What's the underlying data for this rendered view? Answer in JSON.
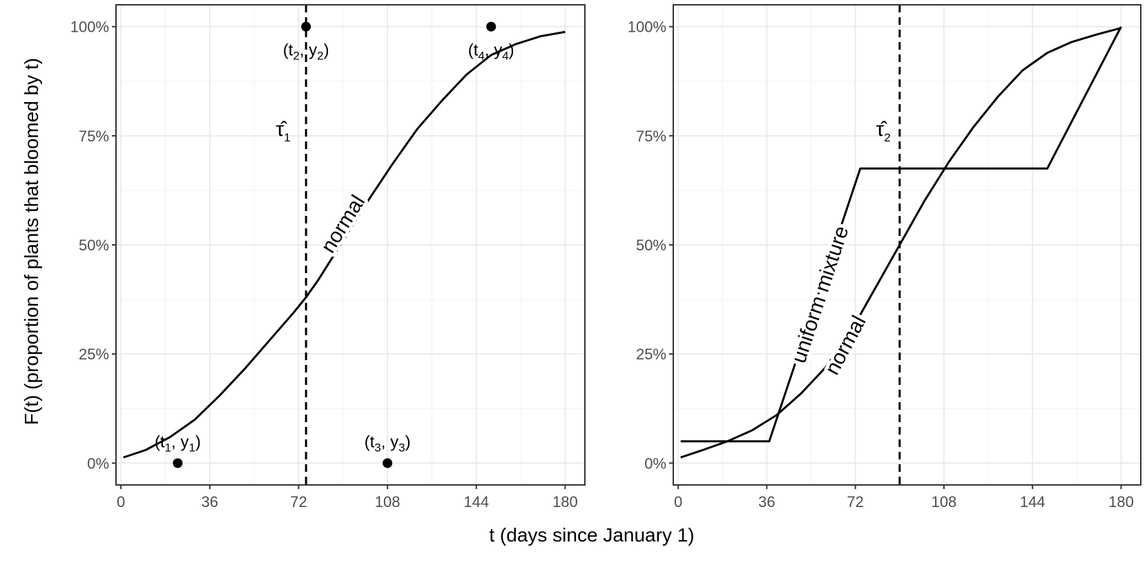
{
  "figure": {
    "y_title": "F(t) (proportion of plants that bloomed by t)",
    "x_title": "t (days since January 1)"
  },
  "colors": {
    "panel_border": "#333333",
    "grid_major": "#ebebeb",
    "grid_minor": "#f2f2f2",
    "ink": "#000000",
    "tick_text": "#4d4d4d"
  },
  "chart_data": [
    {
      "type": "line",
      "xlim": [
        -2,
        188
      ],
      "ylim": [
        -0.05,
        1.05
      ],
      "x_ticks": [
        0,
        36,
        72,
        108,
        144,
        180
      ],
      "x_tick_labels": [
        "0",
        "36",
        "72",
        "108",
        "144",
        "180"
      ],
      "y_ticks": [
        0,
        0.25,
        0.5,
        0.75,
        1
      ],
      "y_tick_labels": [
        "0%",
        "25%",
        "50%",
        "75%",
        "100%"
      ],
      "grid": true,
      "series": [
        {
          "name": "normal",
          "style": "solid",
          "x": [
            1,
            10,
            20,
            30,
            40,
            50,
            60,
            70,
            75,
            80,
            90,
            100,
            110,
            120,
            130,
            140,
            150,
            160,
            170,
            180
          ],
          "y": [
            0.013,
            0.03,
            0.06,
            0.1,
            0.155,
            0.215,
            0.28,
            0.345,
            0.38,
            0.42,
            0.51,
            0.6,
            0.685,
            0.765,
            0.83,
            0.89,
            0.935,
            0.96,
            0.978,
            0.988
          ]
        }
      ],
      "points": [
        {
          "x": 23,
          "y": 0,
          "label": "(t",
          "sub1": "1",
          "mid": ", y",
          "sub2": "1",
          "end": ")"
        },
        {
          "x": 75,
          "y": 1,
          "label": "(t",
          "sub1": "2",
          "mid": ", y",
          "sub2": "2",
          "end": ")"
        },
        {
          "x": 108,
          "y": 0,
          "label": "(t",
          "sub1": "3",
          "mid": ", y",
          "sub2": "3",
          "end": ")"
        },
        {
          "x": 150,
          "y": 1,
          "label": "(t",
          "sub1": "4",
          "mid": ", y",
          "sub2": "4",
          "end": ")"
        }
      ],
      "vline": {
        "x": 75,
        "style": "dashed"
      },
      "tau_label": {
        "symbol": "τ̂",
        "sub": "1"
      },
      "curve_labels": [
        {
          "text": "normal",
          "series": "normal"
        }
      ]
    },
    {
      "type": "line",
      "xlim": [
        -2,
        188
      ],
      "ylim": [
        -0.05,
        1.05
      ],
      "x_ticks": [
        0,
        36,
        72,
        108,
        144,
        180
      ],
      "x_tick_labels": [
        "0",
        "36",
        "72",
        "108",
        "144",
        "180"
      ],
      "y_ticks": [
        0,
        0.25,
        0.5,
        0.75,
        1
      ],
      "y_tick_labels": [
        "0%",
        "25%",
        "50%",
        "75%",
        "100%"
      ],
      "grid": true,
      "series": [
        {
          "name": "normal",
          "style": "solid",
          "x": [
            1,
            10,
            20,
            30,
            40,
            50,
            60,
            70,
            80,
            90,
            100,
            110,
            120,
            130,
            140,
            150,
            160,
            170,
            180
          ],
          "y": [
            0.013,
            0.03,
            0.05,
            0.075,
            0.11,
            0.16,
            0.22,
            0.3,
            0.4,
            0.5,
            0.6,
            0.69,
            0.77,
            0.84,
            0.9,
            0.94,
            0.965,
            0.982,
            0.997
          ]
        },
        {
          "name": "uniform mixture",
          "style": "solid",
          "x": [
            1,
            37,
            74,
            150,
            180
          ],
          "y": [
            0.05,
            0.05,
            0.675,
            0.675,
            1.0
          ]
        }
      ],
      "points": [],
      "vline": {
        "x": 90,
        "style": "dashed"
      },
      "tau_label": {
        "symbol": "τ̂",
        "sub": "2"
      },
      "curve_labels": [
        {
          "text": "uniform mixture",
          "series": "uniform mixture"
        },
        {
          "text": "normal",
          "series": "normal"
        }
      ]
    }
  ]
}
